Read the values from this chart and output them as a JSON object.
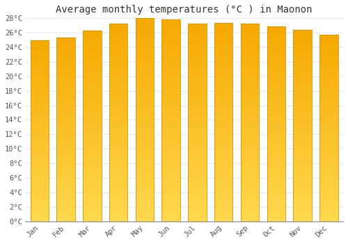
{
  "title": "Average monthly temperatures (°C ) in Maonon",
  "months": [
    "Jan",
    "Feb",
    "Mar",
    "Apr",
    "May",
    "Jun",
    "Jul",
    "Aug",
    "Sep",
    "Oct",
    "Nov",
    "Dec"
  ],
  "values": [
    25.0,
    25.3,
    26.3,
    27.3,
    28.0,
    27.8,
    27.3,
    27.4,
    27.3,
    26.9,
    26.4,
    25.7
  ],
  "bar_color_top": "#F5A800",
  "bar_color_bottom": "#FFD84D",
  "bar_edge_color": "#D99000",
  "ylim": [
    0,
    28
  ],
  "ytick_step": 2,
  "background_color": "#ffffff",
  "plot_bg_color": "#ffffff",
  "grid_color": "#e8e8e8",
  "title_fontsize": 10,
  "tick_fontsize": 7.5,
  "title_font": "monospace",
  "tick_font": "monospace"
}
